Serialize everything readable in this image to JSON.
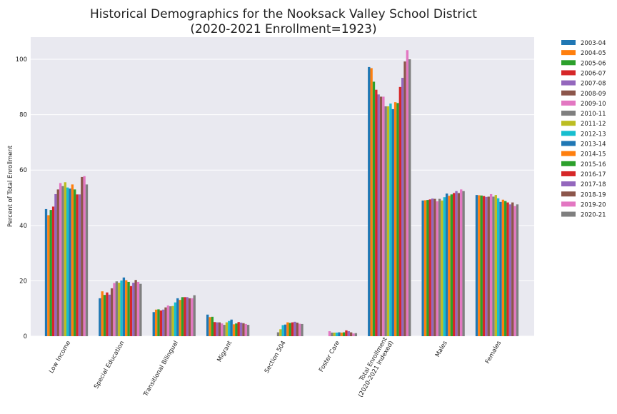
{
  "chart_data": {
    "type": "bar",
    "title": "Historical Demographics for the Nooksack Valley School District",
    "subtitle": "(2020-2021 Enrollment=1923)",
    "xlabel": "",
    "ylabel": "Percent of Total Enrollment",
    "ylim": [
      0,
      108
    ],
    "yticks": [
      0,
      20,
      40,
      60,
      80,
      100
    ],
    "grid": true,
    "legend_position": "outside-right",
    "categories": [
      "Low Income",
      "Special Education",
      "Transitional Bilingual",
      "Migrant",
      "Section 504",
      "Foster Care",
      "Total Enrollment\n(2020-2021 Indexed)",
      "Males",
      "Females"
    ],
    "series": [
      {
        "name": "2003-04",
        "color": "#1f77b4",
        "values": [
          45.9,
          13.7,
          8.7,
          7.8,
          0,
          0,
          97.2,
          49.0,
          51.0
        ]
      },
      {
        "name": "2004-05",
        "color": "#ff7f0e",
        "values": [
          43.7,
          16.2,
          9.6,
          6.9,
          0,
          0,
          96.8,
          49.1,
          50.9
        ]
      },
      {
        "name": "2005-06",
        "color": "#2ca02c",
        "values": [
          45.6,
          14.9,
          9.7,
          7.0,
          0,
          0,
          91.9,
          49.2,
          50.8
        ]
      },
      {
        "name": "2006-07",
        "color": "#d62728",
        "values": [
          46.8,
          15.8,
          9.3,
          5.1,
          0,
          0,
          89.0,
          49.4,
          50.6
        ]
      },
      {
        "name": "2007-08",
        "color": "#9467bd",
        "values": [
          51.3,
          15.0,
          9.6,
          5.0,
          0,
          0,
          87.3,
          49.7,
          50.3
        ]
      },
      {
        "name": "2008-09",
        "color": "#8c564b",
        "values": [
          53.0,
          17.3,
          10.4,
          5.0,
          0,
          0,
          86.5,
          49.6,
          50.4
        ]
      },
      {
        "name": "2009-10",
        "color": "#e377c2",
        "values": [
          55.3,
          19.2,
          11.1,
          4.6,
          0,
          1.8,
          86.5,
          48.7,
          51.3
        ]
      },
      {
        "name": "2010-11",
        "color": "#7f7f7f",
        "values": [
          54.2,
          19.8,
          10.8,
          4.1,
          1.4,
          1.3,
          83.0,
          49.6,
          50.4
        ]
      },
      {
        "name": "2011-12",
        "color": "#bcbd22",
        "values": [
          55.6,
          19.3,
          10.9,
          5.0,
          2.5,
          1.3,
          83.0,
          49.0,
          51.0
        ]
      },
      {
        "name": "2012-13",
        "color": "#17becf",
        "values": [
          53.7,
          20.1,
          12.2,
          5.5,
          4.0,
          1.3,
          84.0,
          50.2,
          49.8
        ]
      },
      {
        "name": "2013-14",
        "color": "#1f77b4",
        "values": [
          53.3,
          21.2,
          13.7,
          6.0,
          4.2,
          1.4,
          82.0,
          51.5,
          48.5
        ]
      },
      {
        "name": "2014-15",
        "color": "#ff7f0e",
        "values": [
          54.8,
          20.2,
          13.1,
          4.3,
          5.0,
          1.3,
          84.5,
          50.7,
          49.3
        ]
      },
      {
        "name": "2015-16",
        "color": "#2ca02c",
        "values": [
          53.0,
          19.6,
          14.1,
          4.6,
          4.8,
          1.4,
          84.2,
          51.2,
          48.8
        ]
      },
      {
        "name": "2016-17",
        "color": "#d62728",
        "values": [
          51.2,
          18.1,
          14.1,
          5.1,
          5.0,
          2.1,
          90.0,
          51.7,
          48.3
        ]
      },
      {
        "name": "2017-18",
        "color": "#9467bd",
        "values": [
          51.2,
          19.3,
          14.1,
          4.9,
          5.2,
          1.8,
          93.3,
          52.4,
          47.6
        ]
      },
      {
        "name": "2018-19",
        "color": "#8c564b",
        "values": [
          57.5,
          20.3,
          13.7,
          4.7,
          4.9,
          1.4,
          99.2,
          51.7,
          48.3
        ]
      },
      {
        "name": "2019-20",
        "color": "#e377c2",
        "values": [
          57.8,
          19.6,
          13.7,
          4.4,
          4.5,
          1.0,
          103.3,
          53.0,
          47.0
        ]
      },
      {
        "name": "2020-21",
        "color": "#7f7f7f",
        "values": [
          54.8,
          18.9,
          14.8,
          4.1,
          4.4,
          1.1,
          100.0,
          52.4,
          47.6
        ]
      }
    ]
  }
}
